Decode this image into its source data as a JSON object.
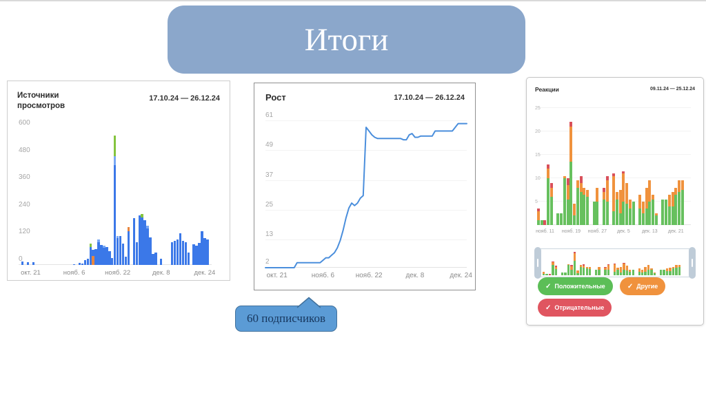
{
  "slide": {
    "title": "Итоги"
  },
  "callout": {
    "text": "60 подписчиков"
  },
  "theme": {
    "banner_bg": "#8ba7cb",
    "banner_text": "#fcfdff",
    "callout_bg": "#5b9bd5",
    "callout_border": "#41719c",
    "callout_text": "#17375e"
  },
  "legend": {
    "buttons": [
      {
        "label": "Положительные",
        "icon": "✓",
        "color": "#5cbe57"
      },
      {
        "label": "Другие",
        "icon": "✓",
        "color": "#f0923d"
      },
      {
        "label": "Отрицательные",
        "icon": "✓",
        "color": "#e05560"
      }
    ]
  },
  "chart_data": [
    {
      "id": "views",
      "type": "bar",
      "stacked": true,
      "title": "Источники просмотров",
      "date_range": "17.10.24 — 26.12.24",
      "ylim": [
        0,
        600
      ],
      "y_ticks": [
        600,
        480,
        360,
        240,
        120,
        0
      ],
      "x_ticks": [
        {
          "label": "окт. 21",
          "day": 4
        },
        {
          "label": "нояб. 6",
          "day": 20
        },
        {
          "label": "нояб. 22",
          "day": 36
        },
        {
          "label": "дек. 8",
          "day": 52
        },
        {
          "label": "дек. 24",
          "day": 68
        }
      ],
      "days": 71,
      "grid": false,
      "colors": {
        "b": "#3b78e8",
        "lb": "#79a8f4",
        "g": "#84c43e",
        "o": "#e8853d"
      },
      "bars": [
        [],
        [
          [
            "b",
            16
          ]
        ],
        [],
        [
          [
            "b",
            12
          ]
        ],
        [],
        [
          [
            "b",
            12
          ]
        ],
        [],
        [],
        [],
        [],
        [],
        [],
        [],
        [],
        [],
        [],
        [],
        [],
        [],
        [],
        [
          [
            "b",
            4
          ]
        ],
        [],
        [
          [
            "b",
            8
          ]
        ],
        [
          [
            "b",
            6
          ]
        ],
        [
          [
            "b",
            20
          ]
        ],
        [
          [
            "b",
            26
          ]
        ],
        [
          [
            "b",
            78
          ],
          [
            "g",
            16
          ]
        ],
        [
          [
            "o",
            40
          ],
          [
            "b",
            28
          ]
        ],
        [
          [
            "b",
            70
          ]
        ],
        [
          [
            "b",
            100
          ],
          [
            "lb",
            12
          ]
        ],
        [
          [
            "b",
            88
          ]
        ],
        [
          [
            "b",
            75
          ],
          [
            "lb",
            10
          ]
        ],
        [
          [
            "b",
            80
          ]
        ],
        [
          [
            "b",
            60
          ]
        ],
        [
          [
            "b",
            30
          ]
        ],
        [
          [
            "b",
            440
          ],
          [
            "lb",
            40
          ],
          [
            "g",
            90
          ]
        ],
        [
          [
            "b",
            118
          ],
          [
            "lb",
            8
          ]
        ],
        [
          [
            "b",
            128
          ]
        ],
        [
          [
            "b",
            95
          ]
        ],
        [
          [
            "b",
            35
          ]
        ],
        [
          [
            "b",
            148
          ],
          [
            "o",
            20
          ]
        ],
        [],
        [
          [
            "b",
            205
          ]
        ],
        [
          [
            "b",
            100
          ]
        ],
        [
          [
            "b",
            218
          ]
        ],
        [
          [
            "b",
            208
          ],
          [
            "g",
            16
          ]
        ],
        [
          [
            "b",
            198
          ]
        ],
        [
          [
            "b",
            162
          ],
          [
            "lb",
            12
          ]
        ],
        [
          [
            "b",
            120
          ]
        ],
        [
          [
            "b",
            50
          ]
        ],
        [
          [
            "b",
            55
          ]
        ],
        [],
        [
          [
            "b",
            28
          ]
        ],
        [],
        [],
        [],
        [
          [
            "b",
            100
          ]
        ],
        [
          [
            "b",
            106
          ]
        ],
        [
          [
            "b",
            112
          ]
        ],
        [
          [
            "b",
            138
          ]
        ],
        [
          [
            "b",
            106
          ]
        ],
        [
          [
            "b",
            100
          ]
        ],
        [
          [
            "b",
            55
          ]
        ],
        [],
        [
          [
            "b",
            90
          ]
        ],
        [
          [
            "b",
            86
          ]
        ],
        [
          [
            "b",
            96
          ]
        ],
        [
          [
            "b",
            148
          ]
        ],
        [
          [
            "b",
            118
          ]
        ],
        [
          [
            "b",
            112
          ]
        ],
        []
      ]
    },
    {
      "id": "growth",
      "type": "line",
      "title": "Рост",
      "date_range": "17.10.24 — 26.12.24",
      "ylim": [
        2,
        61
      ],
      "y_ticks": [
        61,
        49,
        37,
        25,
        13,
        2
      ],
      "x_ticks": [
        {
          "label": "окт. 21",
          "day": 4
        },
        {
          "label": "нояб. 6",
          "day": 20
        },
        {
          "label": "нояб. 22",
          "day": 36
        },
        {
          "label": "дек. 8",
          "day": 52
        },
        {
          "label": "дек. 24",
          "day": 68
        }
      ],
      "days": 71,
      "grid": true,
      "color": "#4a8edc",
      "values": [
        2,
        2,
        2,
        2,
        2,
        2,
        2,
        2,
        2,
        2,
        2,
        4,
        4,
        4,
        4,
        4,
        4,
        4,
        4,
        4,
        5,
        6,
        6,
        7,
        8,
        10,
        13,
        17,
        22,
        26,
        28,
        27,
        28,
        30,
        31,
        58.5,
        57,
        55.5,
        54.5,
        54,
        54,
        54,
        54,
        54,
        54,
        54,
        54,
        54,
        53.5,
        53.5,
        55.5,
        56,
        54.5,
        54.5,
        55,
        55,
        55,
        55,
        55,
        57,
        57,
        57,
        57,
        57,
        57,
        57,
        58.5,
        60,
        60,
        60,
        60
      ]
    },
    {
      "id": "reactions",
      "type": "bar",
      "stacked": true,
      "title": "Реакции",
      "date_range": "09.11.24 — 25.12.24",
      "ylim": [
        0,
        25
      ],
      "y_ticks": [
        25,
        20,
        15,
        10,
        5
      ],
      "x_ticks": [
        {
          "label": "нояб. 11",
          "day": 2
        },
        {
          "label": "нояб. 19",
          "day": 10
        },
        {
          "label": "нояб. 27",
          "day": 18
        },
        {
          "label": "дек. 5",
          "day": 26
        },
        {
          "label": "дек. 13",
          "day": 34
        },
        {
          "label": "дек. 21",
          "day": 42
        }
      ],
      "days": 47,
      "grid": true,
      "colors": {
        "g": "#67c05e",
        "o": "#f0923d",
        "r": "#d9505a"
      },
      "bars": [
        [
          [
            "g",
            1
          ],
          [
            "o",
            2
          ],
          [
            "r",
            0.5
          ]
        ],
        [
          [
            "g",
            1
          ]
        ],
        [
          [
            "r",
            1
          ]
        ],
        [
          [
            "g",
            10
          ],
          [
            "o",
            2
          ],
          [
            "r",
            1
          ]
        ],
        [
          [
            "g",
            6
          ],
          [
            "o",
            2
          ],
          [
            "r",
            1
          ]
        ],
        [],
        [
          [
            "g",
            2.5
          ]
        ],
        [
          [
            "g",
            2.5
          ]
        ],
        [
          [
            "g",
            10
          ],
          [
            "o",
            0.5
          ]
        ],
        [
          [
            "g",
            5.5
          ],
          [
            "o",
            3
          ],
          [
            "r",
            1.5
          ]
        ],
        [
          [
            "g",
            13.5
          ],
          [
            "o",
            7.5
          ],
          [
            "r",
            1
          ]
        ],
        [
          [
            "g",
            2
          ],
          [
            "o",
            2.5
          ]
        ],
        [
          [
            "g",
            8
          ],
          [
            "o",
            1.5
          ]
        ],
        [
          [
            "g",
            7
          ],
          [
            "o",
            2
          ],
          [
            "r",
            1.5
          ]
        ],
        [
          [
            "g",
            6.5
          ],
          [
            "o",
            1.5
          ]
        ],
        [
          [
            "g",
            6
          ],
          [
            "o",
            1.5
          ]
        ],
        [],
        [
          [
            "g",
            5
          ]
        ],
        [
          [
            "g",
            5
          ],
          [
            "o",
            3
          ]
        ],
        [],
        [
          [
            "g",
            5.5
          ],
          [
            "o",
            1.5
          ],
          [
            "r",
            1
          ]
        ],
        [
          [
            "g",
            5
          ],
          [
            "o",
            4.5
          ],
          [
            "r",
            1
          ]
        ],
        [],
        [
          [
            "g",
            3
          ],
          [
            "o",
            7.5
          ],
          [
            "r",
            0.5
          ]
        ],
        [
          [
            "g",
            5.5
          ],
          [
            "o",
            1.5
          ]
        ],
        [
          [
            "g",
            2.5
          ],
          [
            "o",
            5
          ]
        ],
        [
          [
            "g",
            5
          ],
          [
            "o",
            6
          ],
          [
            "r",
            0.5
          ]
        ],
        [
          [
            "g",
            4.5
          ],
          [
            "o",
            4.5
          ]
        ],
        [
          [
            "g",
            3.5
          ],
          [
            "o",
            2
          ]
        ],
        [
          [
            "g",
            5
          ]
        ],
        [],
        [
          [
            "g",
            3.5
          ],
          [
            "o",
            3
          ]
        ],
        [
          [
            "g",
            2.5
          ],
          [
            "o",
            2.5
          ]
        ],
        [
          [
            "g",
            3.5
          ],
          [
            "o",
            4.5
          ]
        ],
        [
          [
            "g",
            5
          ],
          [
            "o",
            4.5
          ]
        ],
        [
          [
            "g",
            5.5
          ],
          [
            "o",
            1
          ]
        ],
        [
          [
            "g",
            2
          ],
          [
            "o",
            0.5
          ]
        ],
        [],
        [
          [
            "g",
            5.5
          ]
        ],
        [
          [
            "g",
            5.5
          ]
        ],
        [
          [
            "g",
            4
          ],
          [
            "o",
            2.5
          ]
        ],
        [
          [
            "g",
            4
          ],
          [
            "o",
            3
          ]
        ],
        [
          [
            "g",
            6.5
          ],
          [
            "o",
            1.5
          ]
        ],
        [
          [
            "g",
            7
          ],
          [
            "o",
            2.5
          ]
        ],
        [
          [
            "g",
            7.5
          ],
          [
            "o",
            2
          ]
        ],
        [],
        []
      ]
    }
  ]
}
